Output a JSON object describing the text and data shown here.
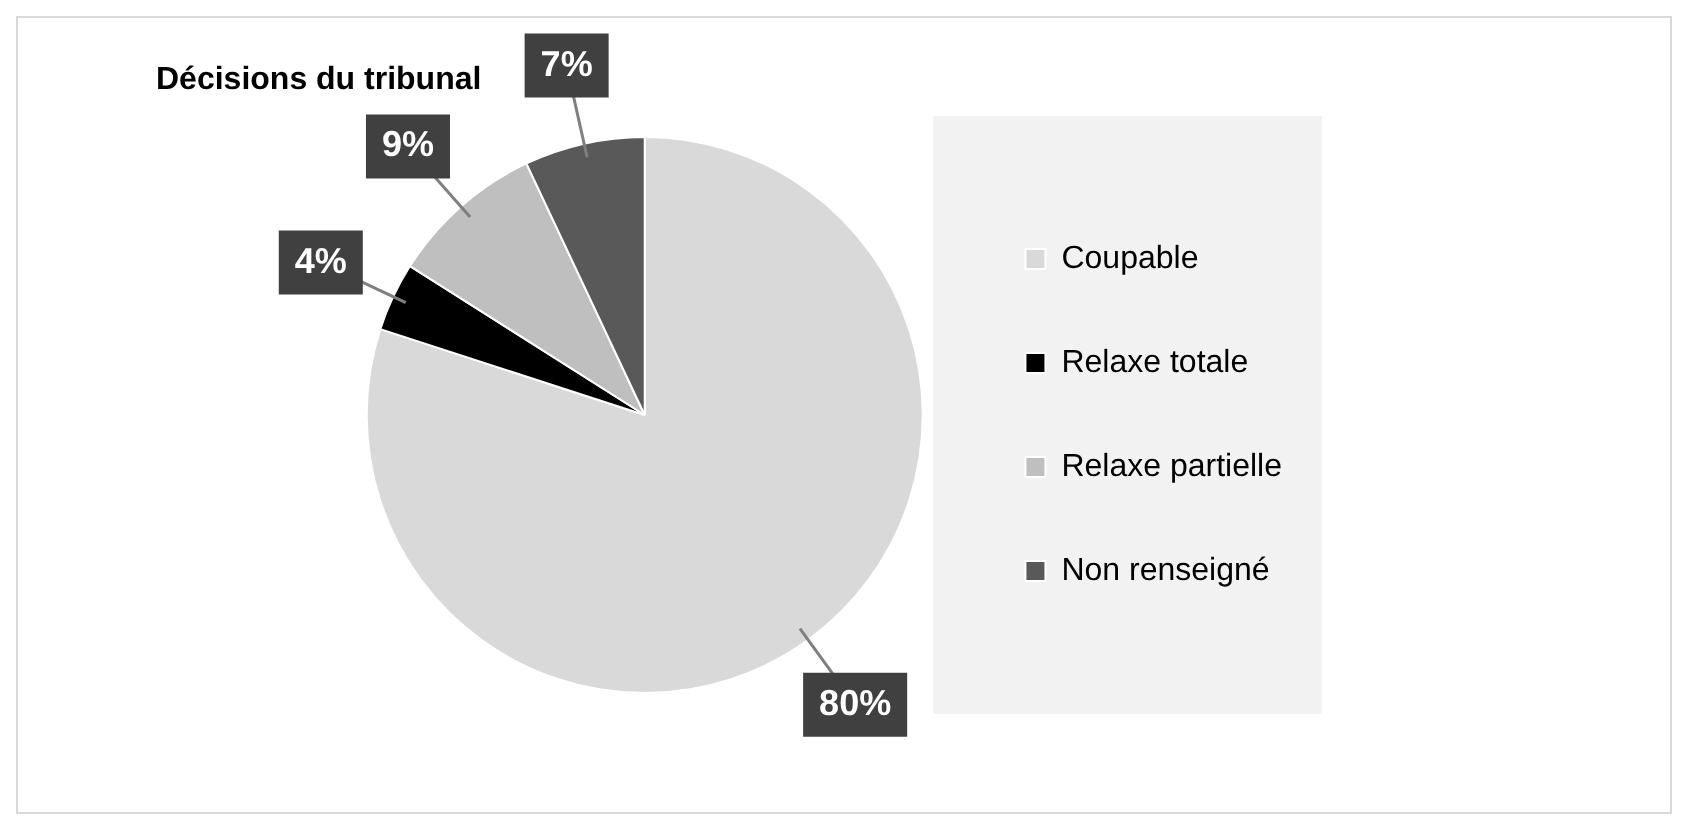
{
  "chart_data": {
    "type": "pie",
    "title": "Décisions du tribunal",
    "categories": [
      "Coupable",
      "Relaxe totale",
      "Relaxe partielle",
      "Non renseigné"
    ],
    "values": [
      80,
      4,
      9,
      7
    ],
    "colors": [
      "#d9d9d9",
      "#000000",
      "#bfbfbf",
      "#595959"
    ],
    "value_labels": [
      "80%",
      "4%",
      "9%",
      "7%"
    ],
    "legend": "right"
  }
}
